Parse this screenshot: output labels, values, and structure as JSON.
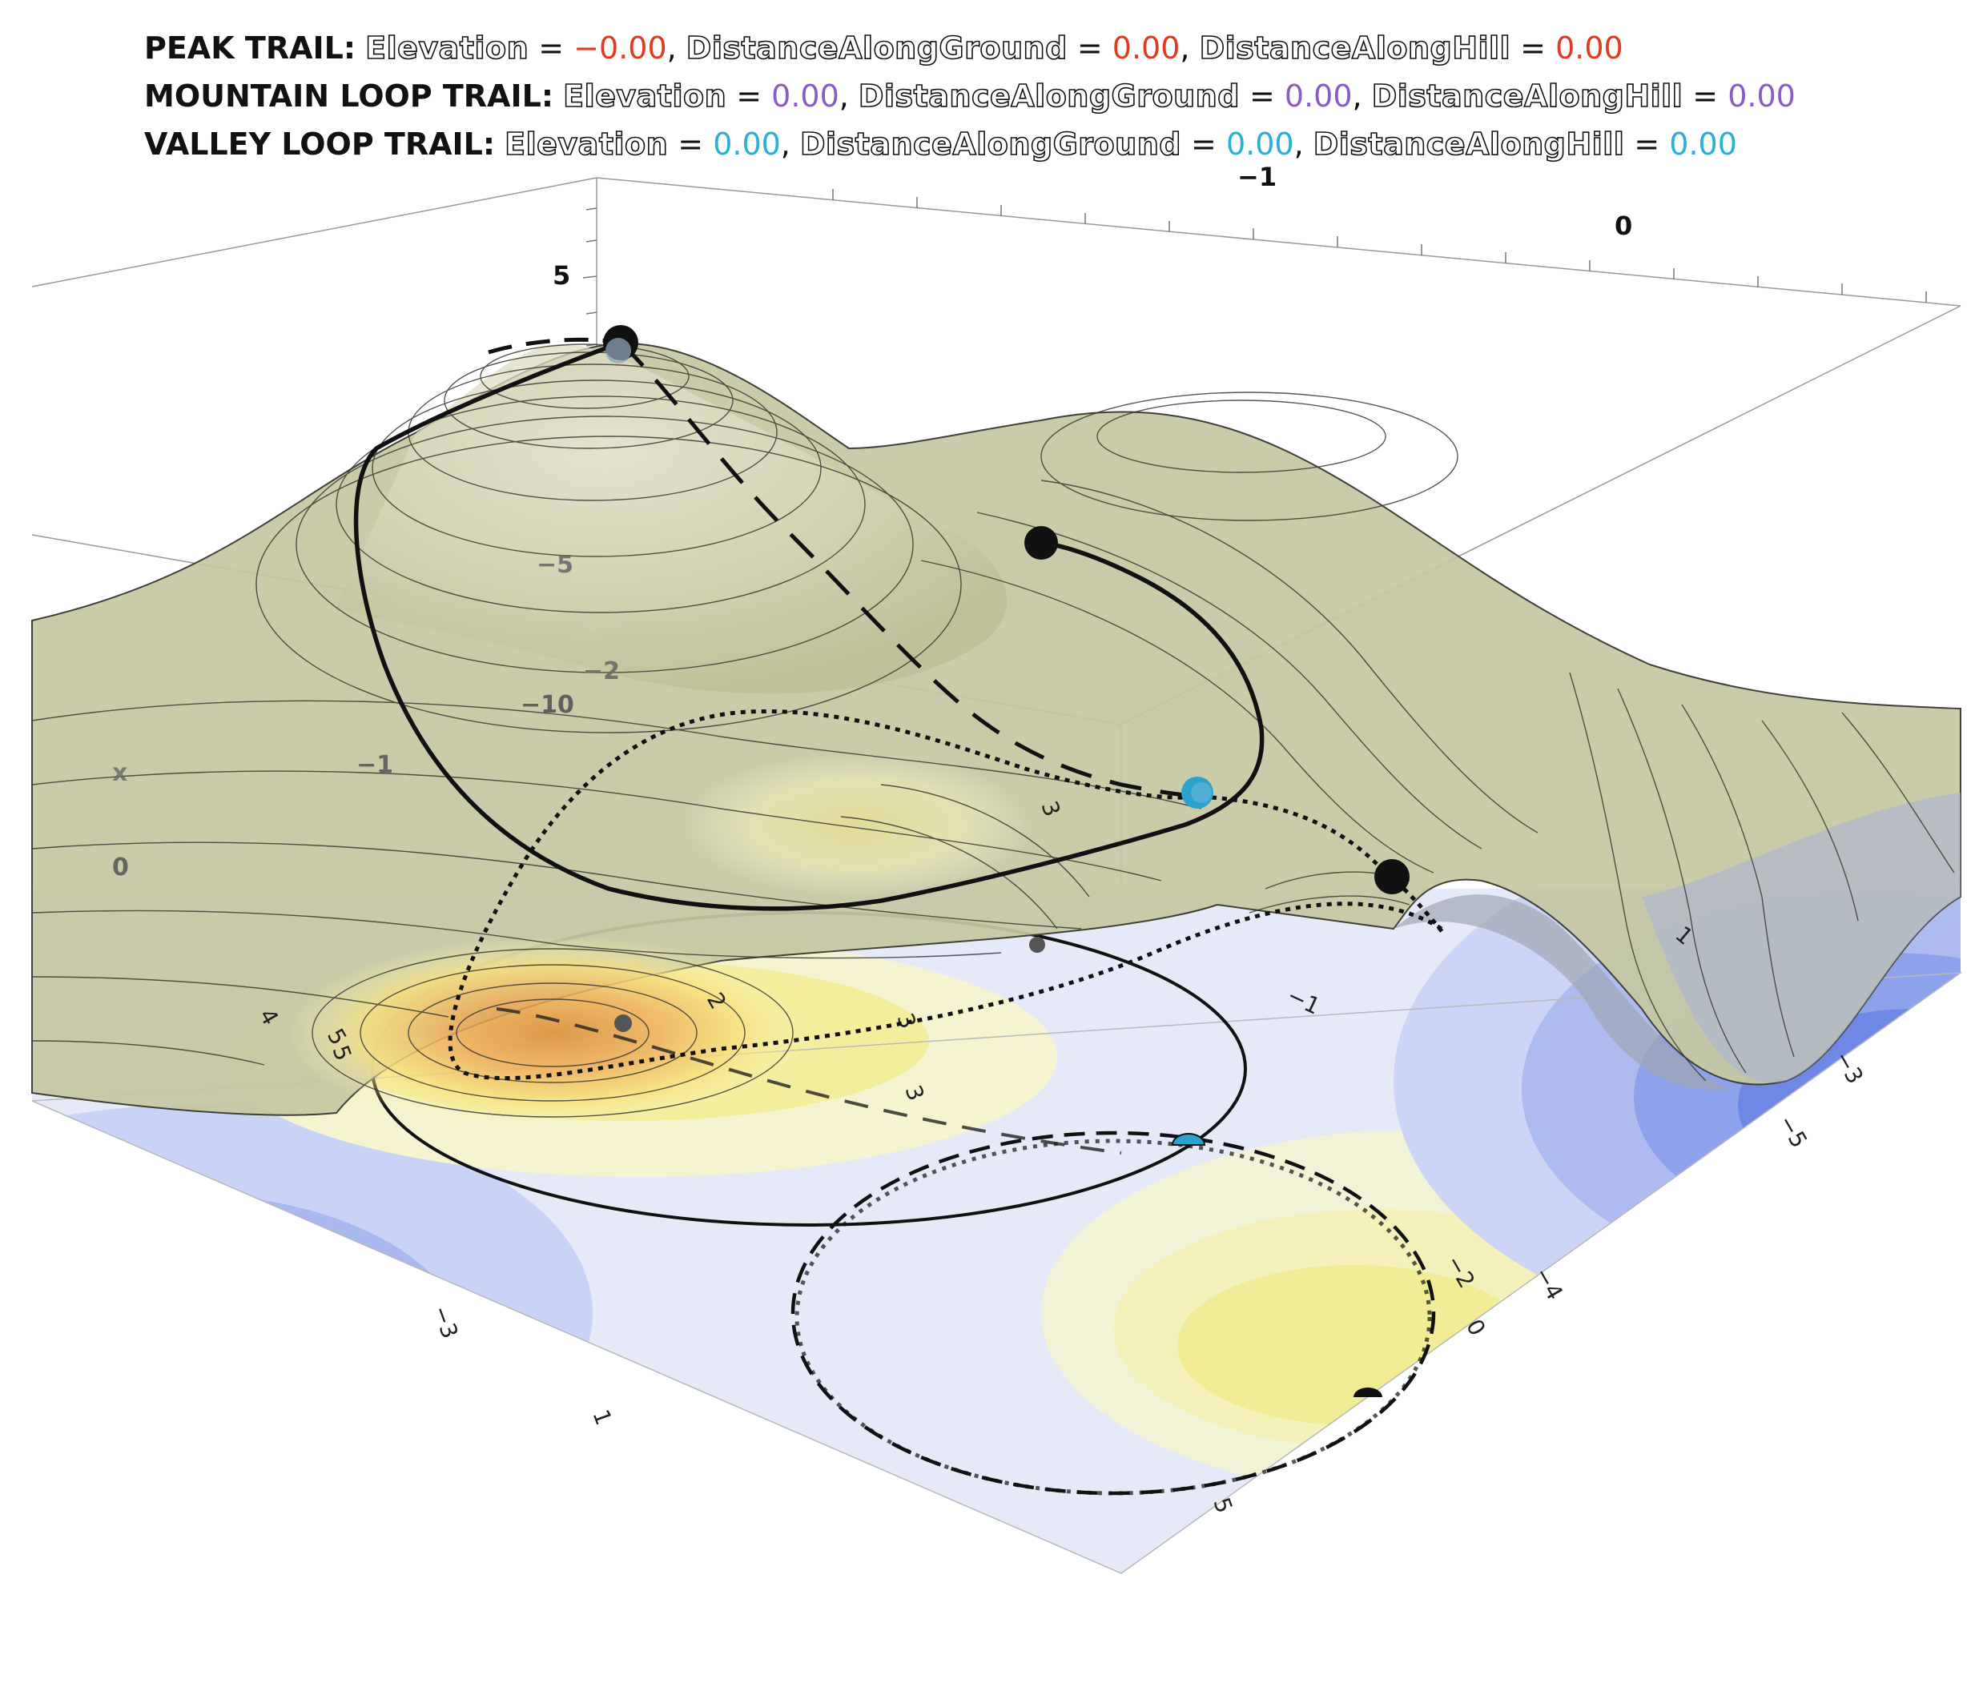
{
  "readouts": [
    {
      "trail": "PEAK TRAIL:",
      "color": "#e03a20",
      "fields": [
        {
          "label": "Elevation",
          "value": "−0.00"
        },
        {
          "label": "DistanceAlongGround",
          "value": "0.00"
        },
        {
          "label": "DistanceAlongHill",
          "value": "0.00"
        }
      ]
    },
    {
      "trail": "MOUNTAIN LOOP TRAIL:",
      "color": "#8a5cc9",
      "fields": [
        {
          "label": "Elevation",
          "value": "0.00"
        },
        {
          "label": "DistanceAlongGround",
          "value": "0.00"
        },
        {
          "label": "DistanceAlongHill",
          "value": "0.00"
        }
      ]
    },
    {
      "trail": "VALLEY LOOP TRAIL:",
      "color": "#2ab0d8",
      "fields": [
        {
          "label": "Elevation",
          "value": "0.00"
        },
        {
          "label": "DistanceAlongGround",
          "value": "0.00"
        },
        {
          "label": "DistanceAlongHill",
          "value": "0.00"
        }
      ]
    }
  ],
  "axis_labels": {
    "top_minus1": "−1",
    "top_zero": "0",
    "z_five": "5",
    "z_minus5": "−5",
    "z_minus10": "−10",
    "y_minus2": "−2",
    "x_minus1": "−1",
    "x_zero": "0",
    "x_name": "x"
  },
  "contour_labels": [
    "3",
    "1",
    "2",
    "4",
    "5",
    "5",
    "3",
    "−1",
    "−3",
    "−5",
    "−2",
    "−4",
    "0",
    "−3",
    "1",
    "3",
    "5"
  ],
  "colors": {
    "surface": "#c7c7a4",
    "surface_edge": "#4a4a3a",
    "blue_deep": "#5b74e2",
    "blue_mid": "#98aaee",
    "blue_light": "#c8d2f6",
    "pale": "#eef0f8",
    "yellow": "#f4ef9e",
    "orange": "#e7a04a",
    "teal_marker": "#2aa3cf"
  }
}
